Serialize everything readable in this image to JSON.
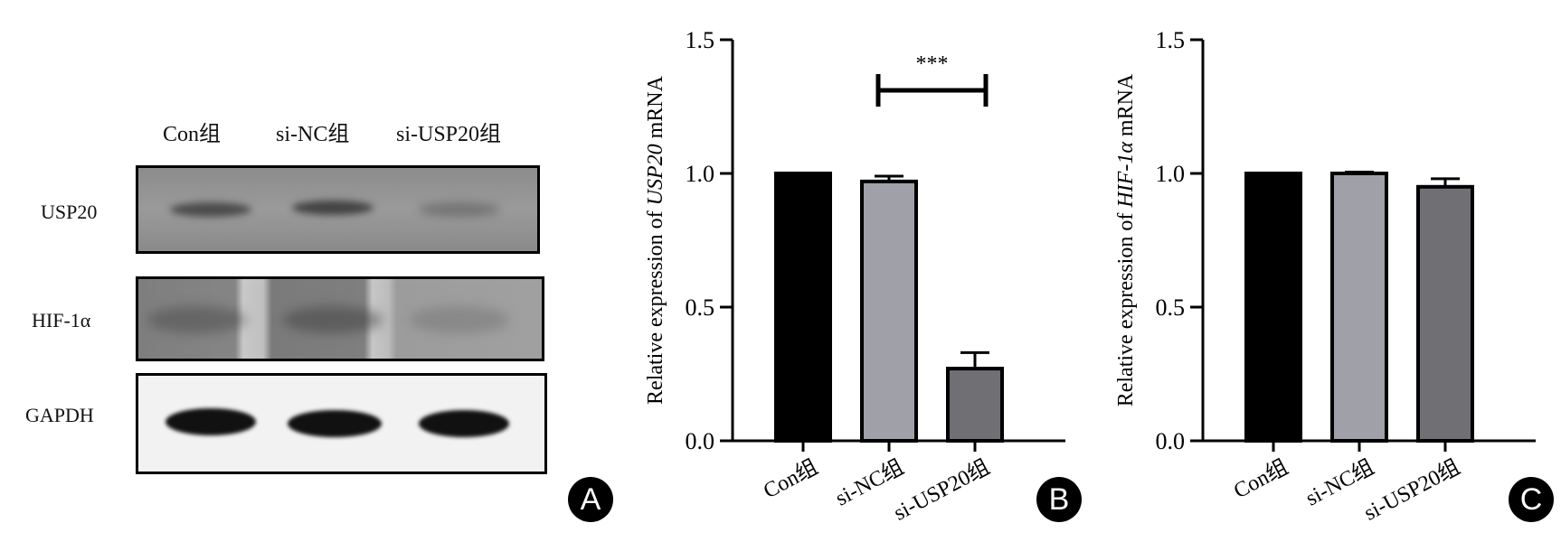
{
  "panelA": {
    "lanes": [
      "Con组",
      "si-NC组",
      "si-USP20组"
    ],
    "rows": [
      "USP20",
      "HIF-1α",
      "GAPDH"
    ],
    "badge": "A"
  },
  "chart_data": [
    {
      "type": "bar",
      "panel": "B",
      "categories": [
        "Con组",
        "si-NC组",
        "si-USP20组"
      ],
      "values": [
        1.0,
        0.97,
        0.27
      ],
      "errors": [
        0,
        0.02,
        0.06
      ],
      "ylabel_prefix": "Relative expression of ",
      "ylabel_italic": "USP20",
      "ylabel_suffix": " mRNA",
      "ylim": [
        0,
        1.5
      ],
      "yticks": [
        "0.0",
        "0.5",
        "1.0",
        "1.5"
      ],
      "significance": {
        "from": 1,
        "to": 2,
        "label": "***"
      },
      "bar_colors": [
        "#000000",
        "#a0a0a8",
        "#6f6f74"
      ]
    },
    {
      "type": "bar",
      "panel": "C",
      "categories": [
        "Con组",
        "si-NC组",
        "si-USP20组"
      ],
      "values": [
        1.0,
        1.0,
        0.95
      ],
      "errors": [
        0,
        0.005,
        0.03
      ],
      "ylabel_prefix": "Relative expression of ",
      "ylabel_italic": "HIF-1α",
      "ylabel_suffix": " mRNA",
      "ylim": [
        0,
        1.5
      ],
      "yticks": [
        "0.0",
        "0.5",
        "1.0",
        "1.5"
      ],
      "bar_colors": [
        "#000000",
        "#a0a0a8",
        "#6f6f74"
      ]
    }
  ],
  "badges": {
    "B": "B",
    "C": "C"
  }
}
